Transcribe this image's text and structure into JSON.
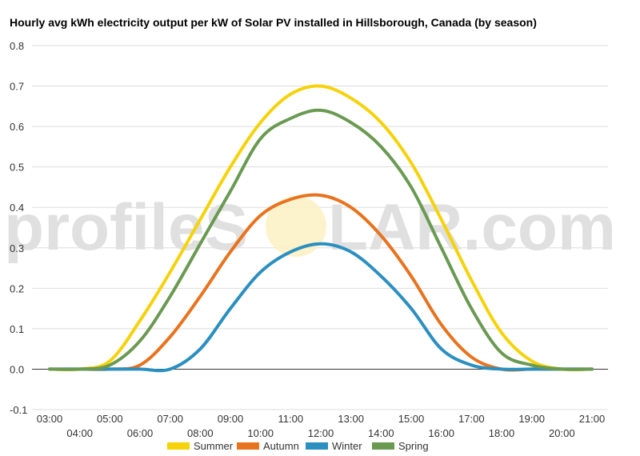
{
  "watermark": {
    "left": "profileS",
    "right": "LAR.com"
  },
  "chart_data": {
    "type": "line",
    "title": "Hourly avg kWh electricity output per kW of Solar PV installed in Hillsborough, Canada (by season)",
    "xlabel": "",
    "ylabel": "",
    "x": [
      "03:00",
      "04:00",
      "05:00",
      "06:00",
      "07:00",
      "08:00",
      "09:00",
      "10:00",
      "11:00",
      "12:00",
      "13:00",
      "14:00",
      "15:00",
      "16:00",
      "17:00",
      "18:00",
      "19:00",
      "20:00",
      "21:00"
    ],
    "ylim": [
      -0.1,
      0.8
    ],
    "yticks": [
      "-0.1",
      "0.0",
      "0.1",
      "0.2",
      "0.3",
      "0.4",
      "0.5",
      "0.6",
      "0.7",
      "0.8"
    ],
    "grid": true,
    "legend_position": "bottom",
    "series": [
      {
        "name": "Summer",
        "color": "#f5d20a",
        "values": [
          0,
          0,
          0.02,
          0.12,
          0.24,
          0.37,
          0.5,
          0.61,
          0.68,
          0.7,
          0.67,
          0.61,
          0.51,
          0.37,
          0.22,
          0.09,
          0.02,
          0,
          0
        ]
      },
      {
        "name": "Autumn",
        "color": "#e8731e",
        "values": [
          0,
          0,
          0,
          0.01,
          0.08,
          0.18,
          0.29,
          0.38,
          0.42,
          0.43,
          0.4,
          0.33,
          0.23,
          0.11,
          0.03,
          0,
          0,
          0,
          0
        ]
      },
      {
        "name": "Winter",
        "color": "#2b8fbf",
        "values": [
          0,
          0,
          0,
          0,
          0,
          0.05,
          0.15,
          0.24,
          0.29,
          0.31,
          0.29,
          0.23,
          0.15,
          0.05,
          0.01,
          0,
          0,
          0,
          0
        ]
      },
      {
        "name": "Spring",
        "color": "#6a9a52",
        "values": [
          0,
          0,
          0.01,
          0.07,
          0.18,
          0.31,
          0.44,
          0.57,
          0.62,
          0.64,
          0.61,
          0.55,
          0.45,
          0.3,
          0.15,
          0.04,
          0.01,
          0,
          0
        ]
      }
    ]
  }
}
